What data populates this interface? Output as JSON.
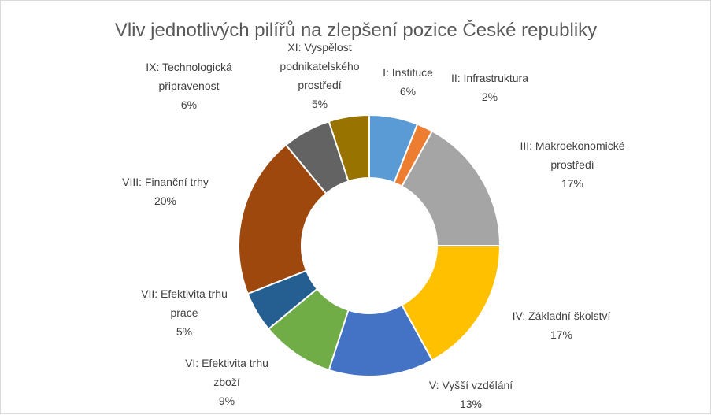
{
  "chart_data": {
    "type": "pie",
    "variant": "doughnut",
    "title": "Vliv jednotlivých pilířů na zlepšení pozice České republiky",
    "legend": "none",
    "slices": [
      {
        "label": [
          "I: Instituce"
        ],
        "value_text": "6%",
        "value": 6,
        "color": "#5b9bd5"
      },
      {
        "label": [
          "II: Infrastruktura"
        ],
        "value_text": "2%",
        "value": 2,
        "color": "#ed7d31"
      },
      {
        "label": [
          "III: Makroekonomické",
          "prostředí"
        ],
        "value_text": "17%",
        "value": 17,
        "color": "#a5a5a5"
      },
      {
        "label": [
          "IV: Základní školství"
        ],
        "value_text": "17%",
        "value": 17,
        "color": "#ffc000"
      },
      {
        "label": [
          "V: Vyšší vzdělání"
        ],
        "value_text": "13%",
        "value": 13,
        "color": "#4472c4"
      },
      {
        "label": [
          "VI: Efektivita trhu",
          "zboží"
        ],
        "value_text": "9%",
        "value": 9,
        "color": "#70ad47"
      },
      {
        "label": [
          "VII: Efektivita trhu",
          "práce"
        ],
        "value_text": "5%",
        "value": 5,
        "color": "#255e91"
      },
      {
        "label": [
          "VIII: Finanční trhy"
        ],
        "value_text": "20%",
        "value": 20,
        "color": "#9e480e"
      },
      {
        "label": [
          "IX: Technologická",
          "připravenost"
        ],
        "value_text": "6%",
        "value": 6,
        "color": "#636363"
      },
      {
        "label": [
          "XI: Vyspělost",
          "podnikatelského",
          "prostředí"
        ],
        "value_text": "5%",
        "value": 5,
        "color": "#997300"
      }
    ]
  }
}
